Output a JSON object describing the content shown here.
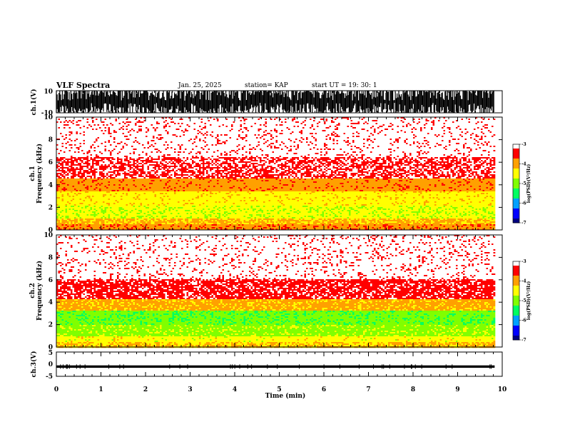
{
  "header": {
    "title": "VLF Spectra",
    "date": "Jan. 25, 2025",
    "station": "station= KAP",
    "start": "start  UT  =   19: 30: 1"
  },
  "chart_data": [
    {
      "type": "line",
      "panel": "ch1_waveform",
      "ylabel": "ch.1(V)",
      "ylim": [
        -10,
        10
      ],
      "yticks": [
        "10",
        "-10"
      ],
      "x_range_min": [
        0,
        9.83
      ],
      "note_data": "saturated broadband waveform filling nearly full ±10 V range"
    },
    {
      "type": "heatmap",
      "panel": "ch1_spectrogram",
      "ylabel": "Frequency (kHz)",
      "ylabel_prefix": "ch.1",
      "ylim": [
        0,
        10
      ],
      "yticks": [
        "0",
        "2",
        "4",
        "6",
        "8",
        "10"
      ],
      "x_range_min": [
        0,
        9.83
      ],
      "bands": [
        {
          "from_khz": 0,
          "to_khz": 0.5,
          "level": -3.9
        },
        {
          "from_khz": 0.5,
          "to_khz": 1.0,
          "level": -4.2
        },
        {
          "from_khz": 1.0,
          "to_khz": 2.2,
          "level": -4.6
        },
        {
          "from_khz": 2.2,
          "to_khz": 3.4,
          "level": -4.45
        },
        {
          "from_khz": 3.4,
          "to_khz": 4.5,
          "level": -3.95
        },
        {
          "from_khz": 4.5,
          "to_khz": 6.5,
          "level": -3.3
        },
        {
          "from_khz": 6.5,
          "to_khz": 10,
          "level": -3.05
        }
      ]
    },
    {
      "type": "heatmap",
      "panel": "ch2_spectrogram",
      "ylabel": "Frequency (kHz)",
      "ylabel_prefix": "ch.2",
      "ylim": [
        0,
        10
      ],
      "yticks": [
        "0",
        "2",
        "4",
        "6",
        "8",
        "10"
      ],
      "x_range_min": [
        0,
        9.83
      ],
      "bands": [
        {
          "from_khz": 0,
          "to_khz": 0.5,
          "level": -4.2
        },
        {
          "from_khz": 0.5,
          "to_khz": 1.0,
          "level": -4.5
        },
        {
          "from_khz": 1.0,
          "to_khz": 2.0,
          "level": -4.9
        },
        {
          "from_khz": 2.0,
          "to_khz": 3.2,
          "level": -5.1
        },
        {
          "from_khz": 3.2,
          "to_khz": 4.3,
          "level": -4.1
        },
        {
          "from_khz": 4.3,
          "to_khz": 6.0,
          "level": -3.4
        },
        {
          "from_khz": 6.0,
          "to_khz": 10,
          "level": -3.05
        }
      ]
    },
    {
      "type": "line",
      "panel": "ch3_waveform",
      "ylabel": "ch.3(V)",
      "ylim": [
        -5,
        5
      ],
      "yticks": [
        "5",
        "0",
        "-5"
      ],
      "x_range_min": [
        0,
        9.83
      ],
      "center_v": -1.0,
      "amplitude_v": 0.5
    }
  ],
  "xaxis": {
    "label": "Time (min)",
    "ticks": [
      "0",
      "1",
      "2",
      "3",
      "4",
      "5",
      "6",
      "7",
      "8",
      "9",
      "10"
    ],
    "range": [
      0,
      10
    ]
  },
  "colorbar": {
    "label": "log(PSD)(V²/Hz)",
    "range": [
      -7,
      -3
    ],
    "ticks": [
      "-3",
      "-4",
      "-5",
      "-6",
      "-7"
    ],
    "colors": [
      "#000080",
      "#0000ff",
      "#00a0ff",
      "#00ff60",
      "#80ff00",
      "#ffff00",
      "#ffa000",
      "#ff0000",
      "#ffffff"
    ]
  }
}
